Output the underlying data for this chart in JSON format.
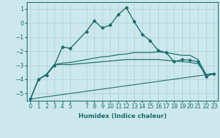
{
  "title": "",
  "xlabel": "Humidex (Indice chaleur)",
  "ylabel": "",
  "bg_color": "#cce8ec",
  "grid_color": "#aacdd4",
  "line_color": "#1a6b6b",
  "xlim": [
    -0.5,
    23.5
  ],
  "ylim": [
    -5.5,
    1.5
  ],
  "yticks": [
    -5,
    -4,
    -3,
    -2,
    -1,
    0,
    1
  ],
  "xtick_positions": [
    0,
    1,
    2,
    3,
    4,
    5,
    7,
    8,
    9,
    10,
    11,
    12,
    13,
    14,
    15,
    16,
    17,
    18,
    19,
    20,
    21,
    22,
    23
  ],
  "xtick_labels": [
    "0",
    "1",
    "2",
    "3",
    "4",
    "5",
    "7",
    "8",
    "9",
    "10",
    "11",
    "12",
    "13",
    "14",
    "15",
    "16",
    "17",
    "18",
    "19",
    "20",
    "21",
    "22",
    "23"
  ],
  "series": [
    {
      "x": [
        0,
        1,
        2,
        3,
        4,
        5,
        7,
        8,
        9,
        10,
        11,
        12,
        13,
        14,
        15,
        16,
        17,
        18,
        19,
        20,
        21,
        22,
        23
      ],
      "y": [
        -5.4,
        -4.0,
        -3.7,
        -3.0,
        -1.7,
        -1.8,
        -0.6,
        0.15,
        -0.35,
        -0.15,
        0.6,
        1.1,
        0.1,
        -0.8,
        -1.25,
        -1.95,
        -2.1,
        -2.75,
        -2.6,
        -2.65,
        -2.75,
        -3.8,
        -3.6
      ],
      "marker": "D",
      "markersize": 2.5,
      "linewidth": 1.0
    },
    {
      "x": [
        0,
        1,
        2,
        3,
        4,
        5,
        7,
        8,
        9,
        10,
        11,
        12,
        13,
        14,
        15,
        16,
        17,
        18,
        19,
        20,
        21,
        22,
        23
      ],
      "y": [
        -5.4,
        -4.0,
        -3.65,
        -2.95,
        -2.85,
        -2.8,
        -2.6,
        -2.5,
        -2.4,
        -2.35,
        -2.25,
        -2.2,
        -2.1,
        -2.1,
        -2.1,
        -2.05,
        -2.1,
        -2.2,
        -2.3,
        -2.3,
        -2.6,
        -3.65,
        -3.6
      ],
      "marker": null,
      "markersize": 0,
      "linewidth": 0.9
    },
    {
      "x": [
        0,
        1,
        2,
        3,
        4,
        5,
        7,
        8,
        9,
        10,
        11,
        12,
        13,
        14,
        15,
        16,
        17,
        18,
        19,
        20,
        21,
        22,
        23
      ],
      "y": [
        -5.4,
        -4.0,
        -3.65,
        -2.95,
        -2.95,
        -2.95,
        -2.85,
        -2.8,
        -2.75,
        -2.7,
        -2.65,
        -2.6,
        -2.6,
        -2.6,
        -2.6,
        -2.6,
        -2.65,
        -2.7,
        -2.75,
        -2.8,
        -2.9,
        -3.65,
        -3.6
      ],
      "marker": null,
      "markersize": 0,
      "linewidth": 0.9
    },
    {
      "x": [
        0,
        23
      ],
      "y": [
        -5.4,
        -3.6
      ],
      "marker": null,
      "markersize": 0,
      "linewidth": 0.8
    }
  ]
}
